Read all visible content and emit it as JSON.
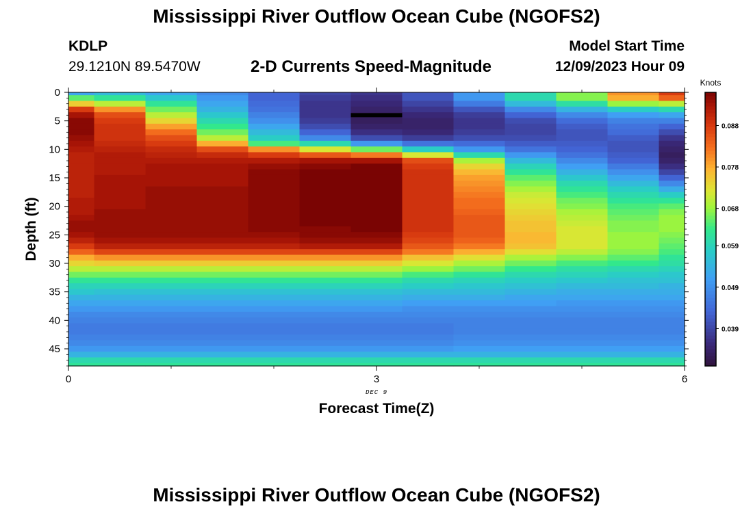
{
  "page": {
    "title_top": "Mississippi River Outflow Ocean Cube (NGOFS2)",
    "title_bottom": "Mississippi River Outflow Ocean Cube (NGOFS2)",
    "station": "KDLP",
    "coords": "29.1210N  89.5470W",
    "product": "2-D Currents Speed-Magnitude",
    "model_start_label": "Model Start Time",
    "model_start_value": "12/09/2023 Hour 09"
  },
  "chart_data": {
    "type": "heatmap",
    "title": "2-D Currents Speed-Magnitude",
    "xlabel": "Forecast Time(Z)",
    "ylabel": "Depth (ft)",
    "x_date_label": "DEC 9",
    "xlim": [
      0,
      6
    ],
    "ylim": [
      48,
      0
    ],
    "x_ticks": [
      0,
      3,
      6
    ],
    "y_ticks": [
      0,
      5,
      10,
      15,
      20,
      25,
      30,
      35,
      40,
      45
    ],
    "colorbar": {
      "label": "Knots",
      "ticks": [
        "0.039",
        "0.049",
        "0.059",
        "0.068",
        "0.078",
        "0.088"
      ],
      "range": [
        0.03,
        0.096
      ]
    },
    "time_columns": [
      0,
      0.25,
      0.75,
      1.25,
      1.75,
      2.25,
      2.75,
      3.25,
      3.75,
      4.25,
      4.75,
      5.25,
      5.75
    ],
    "depth_knots": [
      0,
      1,
      2,
      3,
      4,
      5,
      6,
      7,
      8,
      9,
      10,
      11,
      12,
      13,
      14,
      15,
      16,
      17,
      18,
      19,
      20,
      21,
      22,
      23,
      24,
      25,
      26,
      27,
      28,
      29,
      30,
      31,
      32,
      33,
      34,
      35,
      36,
      37,
      38,
      39,
      40,
      41,
      42,
      43,
      44,
      45,
      46,
      47,
      48
    ],
    "speed_knots": [
      [
        0.052,
        0.065,
        0.075,
        0.088,
        0.093,
        0.095,
        0.095,
        0.095,
        0.094,
        0.093,
        0.092,
        0.091,
        0.091,
        0.091,
        0.091,
        0.091,
        0.091,
        0.091,
        0.091,
        0.092,
        0.092,
        0.092,
        0.093,
        0.094,
        0.094,
        0.093,
        0.091,
        0.088,
        0.084,
        0.078,
        0.074,
        0.07,
        0.066,
        0.062,
        0.059,
        0.057,
        0.054,
        0.052,
        0.05,
        0.048,
        0.047,
        0.046,
        0.046,
        0.047,
        0.048,
        0.05,
        0.054,
        0.06,
        0.062
      ],
      [
        0.055,
        0.062,
        0.07,
        0.08,
        0.086,
        0.088,
        0.089,
        0.089,
        0.089,
        0.09,
        0.091,
        0.092,
        0.092,
        0.092,
        0.092,
        0.093,
        0.093,
        0.093,
        0.093,
        0.093,
        0.093,
        0.094,
        0.094,
        0.094,
        0.094,
        0.094,
        0.093,
        0.091,
        0.087,
        0.08,
        0.075,
        0.07,
        0.066,
        0.062,
        0.059,
        0.056,
        0.054,
        0.052,
        0.05,
        0.048,
        0.047,
        0.046,
        0.046,
        0.047,
        0.048,
        0.05,
        0.054,
        0.06,
        0.062
      ],
      [
        0.052,
        0.057,
        0.062,
        0.066,
        0.07,
        0.074,
        0.079,
        0.083,
        0.086,
        0.088,
        0.09,
        0.091,
        0.092,
        0.093,
        0.093,
        0.093,
        0.093,
        0.094,
        0.094,
        0.094,
        0.094,
        0.094,
        0.094,
        0.094,
        0.094,
        0.094,
        0.093,
        0.091,
        0.087,
        0.08,
        0.075,
        0.07,
        0.066,
        0.062,
        0.059,
        0.056,
        0.054,
        0.052,
        0.05,
        0.048,
        0.047,
        0.046,
        0.046,
        0.047,
        0.048,
        0.05,
        0.054,
        0.06,
        0.062
      ],
      [
        0.048,
        0.05,
        0.052,
        0.054,
        0.057,
        0.06,
        0.063,
        0.066,
        0.07,
        0.078,
        0.086,
        0.09,
        0.092,
        0.093,
        0.093,
        0.093,
        0.093,
        0.094,
        0.094,
        0.094,
        0.094,
        0.094,
        0.094,
        0.094,
        0.094,
        0.094,
        0.093,
        0.091,
        0.087,
        0.08,
        0.075,
        0.07,
        0.066,
        0.062,
        0.059,
        0.056,
        0.054,
        0.052,
        0.05,
        0.048,
        0.047,
        0.046,
        0.046,
        0.047,
        0.048,
        0.05,
        0.054,
        0.06,
        0.062
      ],
      [
        0.043,
        0.043,
        0.044,
        0.045,
        0.047,
        0.049,
        0.052,
        0.055,
        0.058,
        0.064,
        0.08,
        0.088,
        0.092,
        0.094,
        0.095,
        0.095,
        0.095,
        0.095,
        0.095,
        0.095,
        0.095,
        0.095,
        0.095,
        0.095,
        0.095,
        0.094,
        0.093,
        0.091,
        0.087,
        0.08,
        0.075,
        0.07,
        0.066,
        0.062,
        0.059,
        0.056,
        0.054,
        0.052,
        0.05,
        0.048,
        0.047,
        0.046,
        0.046,
        0.047,
        0.048,
        0.05,
        0.054,
        0.06,
        0.062
      ],
      [
        0.039,
        0.038,
        0.037,
        0.037,
        0.037,
        0.038,
        0.04,
        0.043,
        0.048,
        0.06,
        0.072,
        0.085,
        0.093,
        0.095,
        0.096,
        0.096,
        0.096,
        0.096,
        0.096,
        0.096,
        0.096,
        0.096,
        0.096,
        0.096,
        0.095,
        0.095,
        0.094,
        0.092,
        0.087,
        0.08,
        0.075,
        0.07,
        0.066,
        0.062,
        0.059,
        0.056,
        0.054,
        0.052,
        0.05,
        0.048,
        0.047,
        0.046,
        0.046,
        0.047,
        0.048,
        0.05,
        0.054,
        0.06,
        0.062
      ],
      [
        0.037,
        0.036,
        0.035,
        0.034,
        0.033,
        0.033,
        0.034,
        0.036,
        0.04,
        0.05,
        0.066,
        0.082,
        0.093,
        0.096,
        0.097,
        0.097,
        0.097,
        0.097,
        0.097,
        0.097,
        0.097,
        0.097,
        0.096,
        0.096,
        0.096,
        0.095,
        0.094,
        0.092,
        0.087,
        0.08,
        0.075,
        0.07,
        0.066,
        0.062,
        0.059,
        0.056,
        0.054,
        0.052,
        0.05,
        0.048,
        0.047,
        0.046,
        0.046,
        0.047,
        0.048,
        0.05,
        0.054,
        0.06,
        0.062
      ],
      [
        0.041,
        0.041,
        0.039,
        0.037,
        0.035,
        0.034,
        0.034,
        0.035,
        0.038,
        0.045,
        0.058,
        0.072,
        0.086,
        0.088,
        0.089,
        0.089,
        0.089,
        0.089,
        0.089,
        0.089,
        0.089,
        0.089,
        0.089,
        0.089,
        0.089,
        0.088,
        0.087,
        0.085,
        0.082,
        0.076,
        0.072,
        0.068,
        0.064,
        0.06,
        0.058,
        0.055,
        0.053,
        0.051,
        0.049,
        0.048,
        0.047,
        0.046,
        0.046,
        0.047,
        0.048,
        0.05,
        0.054,
        0.06,
        0.062
      ],
      [
        0.05,
        0.05,
        0.046,
        0.041,
        0.038,
        0.037,
        0.037,
        0.038,
        0.04,
        0.044,
        0.05,
        0.06,
        0.069,
        0.074,
        0.077,
        0.079,
        0.08,
        0.081,
        0.082,
        0.083,
        0.083,
        0.084,
        0.085,
        0.085,
        0.085,
        0.085,
        0.084,
        0.082,
        0.078,
        0.073,
        0.069,
        0.066,
        0.062,
        0.059,
        0.057,
        0.055,
        0.053,
        0.051,
        0.049,
        0.048,
        0.047,
        0.047,
        0.047,
        0.048,
        0.049,
        0.051,
        0.054,
        0.06,
        0.062
      ],
      [
        0.06,
        0.06,
        0.055,
        0.048,
        0.043,
        0.04,
        0.039,
        0.039,
        0.04,
        0.042,
        0.045,
        0.05,
        0.055,
        0.059,
        0.062,
        0.065,
        0.067,
        0.069,
        0.071,
        0.072,
        0.073,
        0.074,
        0.075,
        0.076,
        0.076,
        0.077,
        0.077,
        0.076,
        0.073,
        0.069,
        0.066,
        0.063,
        0.06,
        0.058,
        0.056,
        0.054,
        0.052,
        0.051,
        0.049,
        0.048,
        0.047,
        0.047,
        0.047,
        0.048,
        0.049,
        0.051,
        0.054,
        0.06,
        0.062
      ],
      [
        0.067,
        0.067,
        0.061,
        0.054,
        0.048,
        0.044,
        0.042,
        0.041,
        0.041,
        0.042,
        0.043,
        0.045,
        0.048,
        0.051,
        0.054,
        0.057,
        0.06,
        0.062,
        0.064,
        0.066,
        0.067,
        0.069,
        0.07,
        0.071,
        0.072,
        0.072,
        0.072,
        0.072,
        0.07,
        0.067,
        0.064,
        0.061,
        0.059,
        0.057,
        0.055,
        0.053,
        0.052,
        0.05,
        0.049,
        0.048,
        0.047,
        0.047,
        0.047,
        0.048,
        0.049,
        0.051,
        0.054,
        0.06,
        0.062
      ],
      [
        0.08,
        0.078,
        0.068,
        0.058,
        0.051,
        0.047,
        0.045,
        0.044,
        0.042,
        0.041,
        0.041,
        0.042,
        0.043,
        0.046,
        0.049,
        0.052,
        0.055,
        0.058,
        0.06,
        0.062,
        0.064,
        0.065,
        0.066,
        0.067,
        0.067,
        0.068,
        0.068,
        0.068,
        0.067,
        0.065,
        0.063,
        0.06,
        0.058,
        0.056,
        0.055,
        0.053,
        0.052,
        0.05,
        0.049,
        0.048,
        0.047,
        0.047,
        0.047,
        0.048,
        0.049,
        0.051,
        0.054,
        0.06,
        0.062
      ],
      [
        0.088,
        0.084,
        0.07,
        0.06,
        0.052,
        0.047,
        0.043,
        0.04,
        0.037,
        0.035,
        0.034,
        0.033,
        0.034,
        0.036,
        0.039,
        0.043,
        0.048,
        0.053,
        0.058,
        0.062,
        0.065,
        0.067,
        0.068,
        0.068,
        0.068,
        0.067,
        0.066,
        0.065,
        0.064,
        0.062,
        0.061,
        0.059,
        0.057,
        0.056,
        0.054,
        0.053,
        0.052,
        0.05,
        0.049,
        0.048,
        0.047,
        0.047,
        0.047,
        0.048,
        0.049,
        0.051,
        0.054,
        0.06,
        0.062
      ]
    ],
    "annotation_bar": {
      "x_start": 2.75,
      "x_end": 3.25,
      "depth": 4
    }
  }
}
